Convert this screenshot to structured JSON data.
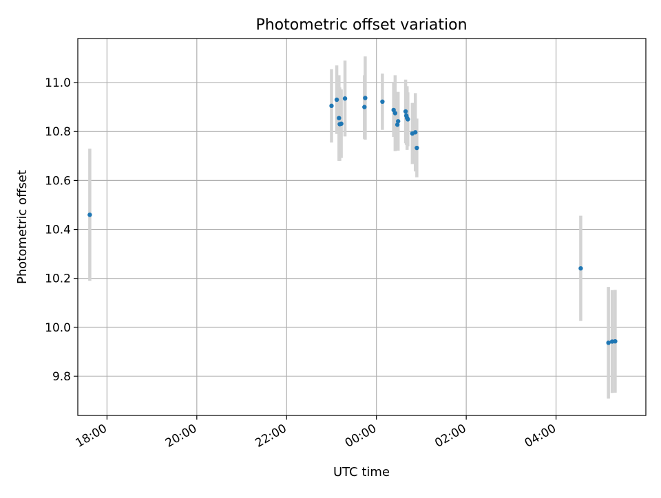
{
  "chart_data": {
    "type": "scatter",
    "title": "Photometric offset variation",
    "xlabel": "UTC time",
    "ylabel": "Photometric offset",
    "x_axis_type": "time",
    "xlim": [
      "17:21",
      "06:00"
    ],
    "ylim": [
      9.64,
      11.18
    ],
    "x_ticks": [
      "18:00",
      "20:00",
      "22:00",
      "00:00",
      "02:00",
      "04:00"
    ],
    "y_ticks": [
      "9.8",
      "10.0",
      "10.2",
      "10.4",
      "10.6",
      "10.8",
      "11.0"
    ],
    "grid": true,
    "colors": {
      "point": "#1f77b4",
      "errorbar": "#d3d3d3",
      "grid": "#b0b0b0",
      "axes": "#000000"
    },
    "points": [
      {
        "t": "17:37",
        "y": 10.46,
        "err": 0.27
      },
      {
        "t": "23:00",
        "y": 10.905,
        "err": 0.15
      },
      {
        "t": "23:07",
        "y": 10.93,
        "err": 0.14
      },
      {
        "t": "23:10",
        "y": 10.855,
        "err": 0.175
      },
      {
        "t": "23:11",
        "y": 10.83,
        "err": 0.15
      },
      {
        "t": "23:13",
        "y": 10.832,
        "err": 0.14
      },
      {
        "t": "23:18",
        "y": 10.935,
        "err": 0.155
      },
      {
        "t": "23:44",
        "y": 10.9,
        "err": 0.13
      },
      {
        "t": "23:45",
        "y": 10.937,
        "err": 0.17
      },
      {
        "t": "00:08",
        "y": 10.922,
        "err": 0.115
      },
      {
        "t": "00:23",
        "y": 10.888,
        "err": 0.11
      },
      {
        "t": "00:25",
        "y": 10.875,
        "err": 0.155
      },
      {
        "t": "00:28",
        "y": 10.828,
        "err": 0.105
      },
      {
        "t": "00:29",
        "y": 10.842,
        "err": 0.12
      },
      {
        "t": "00:39",
        "y": 10.882,
        "err": 0.13
      },
      {
        "t": "00:40",
        "y": 10.865,
        "err": 0.12
      },
      {
        "t": "00:41",
        "y": 10.855,
        "err": 0.13
      },
      {
        "t": "00:42",
        "y": 10.85,
        "err": 0.11
      },
      {
        "t": "00:48",
        "y": 10.792,
        "err": 0.125
      },
      {
        "t": "00:52",
        "y": 10.797,
        "err": 0.16
      },
      {
        "t": "00:54",
        "y": 10.733,
        "err": 0.12
      },
      {
        "t": "04:33",
        "y": 10.241,
        "err": 0.215
      },
      {
        "t": "05:10",
        "y": 9.937,
        "err": 0.228
      },
      {
        "t": "05:15",
        "y": 9.942,
        "err": 0.21
      },
      {
        "t": "05:19",
        "y": 9.943,
        "err": 0.21
      }
    ]
  }
}
